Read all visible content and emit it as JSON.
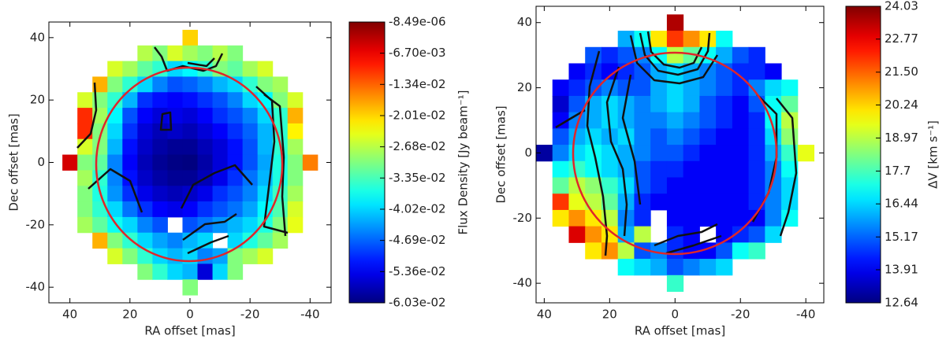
{
  "chart_data": [
    {
      "type": "heatmap",
      "colormap": "jet",
      "x_label": "RA offset [mas]",
      "y_label": "Dec offset [mas]",
      "xlim": [
        47,
        -47
      ],
      "ylim": [
        -45,
        45
      ],
      "xticks": [
        40,
        20,
        0,
        -20,
        -40
      ],
      "yticks": [
        40,
        20,
        0,
        -20,
        -40
      ],
      "x": [
        40,
        35,
        30,
        25,
        20,
        15,
        10,
        5,
        0,
        -5,
        -10,
        -15,
        -20,
        -25,
        -30,
        -35,
        -40
      ],
      "y": [
        40,
        35,
        30,
        25,
        20,
        15,
        10,
        5,
        0,
        -5,
        -10,
        -15,
        -20,
        -25,
        -30,
        -35,
        -40
      ],
      "z": [
        [
          null,
          null,
          null,
          null,
          null,
          null,
          null,
          null,
          -0.02,
          null,
          null,
          null,
          null,
          null,
          null,
          null,
          null
        ],
        [
          null,
          null,
          null,
          null,
          null,
          -0.027,
          -0.03,
          -0.025,
          -0.028,
          -0.03,
          -0.027,
          -0.03,
          null,
          null,
          null,
          null,
          null
        ],
        [
          null,
          null,
          null,
          -0.025,
          -0.028,
          -0.032,
          -0.035,
          -0.04,
          -0.038,
          -0.035,
          -0.03,
          -0.032,
          -0.028,
          -0.025,
          null,
          null,
          null
        ],
        [
          null,
          null,
          -0.018,
          -0.03,
          -0.035,
          -0.04,
          -0.045,
          -0.048,
          -0.047,
          -0.045,
          -0.042,
          -0.04,
          -0.035,
          -0.03,
          -0.028,
          null,
          null
        ],
        [
          null,
          -0.025,
          -0.03,
          -0.035,
          -0.042,
          -0.05,
          -0.052,
          -0.053,
          -0.052,
          -0.05,
          -0.048,
          -0.045,
          -0.04,
          -0.038,
          -0.03,
          -0.025,
          null
        ],
        [
          null,
          -0.01,
          -0.028,
          -0.038,
          -0.048,
          -0.053,
          -0.055,
          -0.054,
          -0.055,
          -0.053,
          -0.05,
          -0.048,
          -0.045,
          -0.04,
          -0.035,
          -0.018,
          null
        ],
        [
          null,
          -0.01,
          -0.03,
          -0.04,
          -0.05,
          -0.055,
          -0.057,
          -0.056,
          -0.057,
          -0.055,
          -0.053,
          -0.05,
          -0.047,
          -0.042,
          -0.035,
          -0.022,
          null
        ],
        [
          null,
          -0.025,
          -0.03,
          -0.042,
          -0.052,
          -0.056,
          -0.058,
          -0.059,
          -0.059,
          -0.057,
          -0.055,
          -0.052,
          -0.048,
          -0.042,
          -0.035,
          -0.028,
          null
        ],
        [
          -0.005,
          -0.03,
          -0.032,
          -0.045,
          -0.053,
          -0.057,
          -0.059,
          -0.06,
          -0.0603,
          -0.058,
          -0.055,
          -0.052,
          -0.048,
          -0.043,
          -0.036,
          -0.03,
          -0.015
        ],
        [
          null,
          -0.028,
          -0.035,
          -0.045,
          -0.052,
          -0.056,
          -0.058,
          -0.059,
          -0.059,
          -0.057,
          -0.054,
          -0.05,
          -0.046,
          -0.042,
          -0.036,
          -0.03,
          null
        ],
        [
          null,
          -0.03,
          -0.036,
          -0.044,
          -0.05,
          -0.054,
          -0.056,
          -0.057,
          -0.056,
          -0.054,
          -0.05,
          -0.048,
          -0.045,
          -0.04,
          -0.034,
          -0.028,
          null
        ],
        [
          null,
          -0.03,
          -0.035,
          -0.04,
          -0.046,
          -0.05,
          -0.053,
          -0.054,
          -0.053,
          -0.05,
          -0.048,
          -0.046,
          -0.043,
          -0.038,
          -0.033,
          -0.025,
          null
        ],
        [
          null,
          -0.028,
          -0.032,
          -0.037,
          -0.04,
          -0.045,
          -0.048,
          null,
          -0.048,
          -0.046,
          -0.044,
          -0.042,
          -0.04,
          -0.036,
          -0.03,
          -0.024,
          null
        ],
        [
          null,
          null,
          -0.018,
          -0.03,
          -0.035,
          -0.04,
          -0.043,
          -0.045,
          -0.042,
          -0.04,
          null,
          -0.04,
          -0.036,
          -0.032,
          -0.028,
          null,
          null
        ],
        [
          null,
          null,
          null,
          -0.025,
          -0.03,
          -0.035,
          -0.04,
          -0.042,
          -0.04,
          -0.045,
          -0.043,
          -0.03,
          -0.028,
          -0.025,
          null,
          null,
          null
        ],
        [
          null,
          null,
          null,
          null,
          null,
          -0.03,
          -0.035,
          -0.04,
          -0.042,
          -0.055,
          -0.04,
          -0.03,
          null,
          null,
          null,
          null,
          null
        ],
        [
          null,
          null,
          null,
          null,
          null,
          null,
          null,
          null,
          -0.03,
          null,
          null,
          null,
          null,
          null,
          null,
          null,
          null
        ]
      ],
      "colorbar": {
        "label": "Flux Density [Jy beam⁻¹]",
        "lim": [
          -0.0603,
          -8.49e-06
        ],
        "ticks": [
          {
            "value": -8.49e-06,
            "label": "-8.49e-06"
          },
          {
            "value": -0.0067,
            "label": "-6.70e-03"
          },
          {
            "value": -0.0134,
            "label": "-1.34e-02"
          },
          {
            "value": -0.0201,
            "label": "-2.01e-02"
          },
          {
            "value": -0.0268,
            "label": "-2.68e-02"
          },
          {
            "value": -0.0335,
            "label": "-3.35e-02"
          },
          {
            "value": -0.0402,
            "label": "-4.02e-02"
          },
          {
            "value": -0.0469,
            "label": "-4.69e-02"
          },
          {
            "value": -0.0536,
            "label": "-5.36e-02"
          },
          {
            "value": -0.0603,
            "label": "-6.03e-02"
          }
        ]
      }
    },
    {
      "type": "heatmap",
      "colormap": "jet",
      "x_label": "RA offset [mas]",
      "y_label": "Dec offset [mas]",
      "xlim": [
        42.5,
        -45.5
      ],
      "ylim": [
        -46,
        45
      ],
      "xticks": [
        40,
        20,
        0,
        -20,
        -40
      ],
      "yticks": [
        40,
        20,
        0,
        -20,
        -40
      ],
      "x": [
        40,
        35,
        30,
        25,
        20,
        15,
        10,
        5,
        0,
        -5,
        -10,
        -15,
        -20,
        -25,
        -30,
        -35,
        -40
      ],
      "y": [
        40,
        35,
        30,
        25,
        20,
        15,
        10,
        5,
        0,
        -5,
        -10,
        -15,
        -20,
        -25,
        -30,
        -35,
        -40
      ],
      "z": [
        [
          null,
          null,
          null,
          null,
          null,
          null,
          null,
          null,
          23.5,
          null,
          null,
          null,
          null,
          null,
          null,
          null,
          null
        ],
        [
          null,
          null,
          null,
          null,
          null,
          16,
          17,
          20,
          22,
          21,
          20,
          17,
          null,
          null,
          null,
          null,
          null
        ],
        [
          null,
          null,
          null,
          15,
          14.5,
          15,
          15.5,
          17,
          19,
          18,
          17,
          16,
          15,
          14.5,
          null,
          null,
          null
        ],
        [
          null,
          null,
          14,
          14.5,
          14,
          14.5,
          15,
          16,
          16.5,
          16,
          15.5,
          15,
          14.5,
          14.5,
          14,
          null,
          null
        ],
        [
          null,
          14,
          14.5,
          15,
          15.5,
          15,
          15,
          16,
          16.5,
          16,
          15.5,
          15,
          14.5,
          15.5,
          16.5,
          17,
          null
        ],
        [
          null,
          13.5,
          15,
          16,
          16.5,
          16,
          15.5,
          16,
          16.5,
          16,
          15,
          14.5,
          14,
          15,
          17,
          18,
          null
        ],
        [
          null,
          14,
          15.5,
          16,
          16.5,
          16,
          15.5,
          15.5,
          16,
          15.5,
          15,
          14.5,
          14,
          14.5,
          17,
          19,
          null
        ],
        [
          null,
          15,
          16,
          16.5,
          16,
          16.5,
          15.5,
          15,
          15.5,
          15,
          14.5,
          14,
          14,
          14.5,
          16.5,
          18.5,
          null
        ],
        [
          13,
          15.5,
          16.5,
          17,
          16.5,
          16,
          15.5,
          15,
          15,
          14.5,
          14,
          14,
          14,
          14.5,
          16,
          17.5,
          19.5
        ],
        [
          null,
          17,
          17.5,
          17,
          16.5,
          16,
          15,
          14.5,
          14.5,
          14,
          14,
          14,
          14,
          14.5,
          15.5,
          17,
          null
        ],
        [
          null,
          18,
          19,
          18.5,
          17.5,
          16.5,
          15,
          14.5,
          14,
          14,
          14,
          14,
          14,
          14.5,
          15.5,
          16.5,
          null
        ],
        [
          null,
          22,
          19.5,
          19,
          18,
          16,
          14.5,
          14,
          14,
          14,
          14,
          14,
          14,
          14.5,
          15.5,
          16.5,
          null
        ],
        [
          null,
          20,
          21,
          20,
          19,
          15.5,
          14.5,
          null,
          14,
          14,
          14,
          14,
          14,
          14,
          15.5,
          17,
          null
        ],
        [
          null,
          null,
          23,
          21,
          20,
          16,
          19,
          null,
          14.5,
          14,
          null,
          14,
          14.5,
          15,
          16.5,
          null,
          null
        ],
        [
          null,
          null,
          null,
          20,
          21,
          19,
          15,
          15.5,
          14.5,
          14,
          14,
          15,
          17,
          17.5,
          null,
          null,
          null
        ],
        [
          null,
          null,
          null,
          null,
          null,
          17,
          16.5,
          16,
          15,
          15.5,
          16,
          16.5,
          null,
          null,
          null,
          null,
          null
        ],
        [
          null,
          null,
          null,
          null,
          null,
          null,
          null,
          null,
          17.5,
          null,
          null,
          null,
          null,
          null,
          null,
          null,
          null
        ]
      ],
      "colorbar": {
        "label": "ΔV [km s⁻¹]",
        "lim": [
          12.64,
          24.03
        ],
        "ticks": [
          24.03,
          22.77,
          {
            "value": 21.5,
            "label": "21.50"
          },
          20.24,
          18.97,
          17.7,
          16.44,
          15.17,
          13.91,
          12.64
        ]
      }
    }
  ]
}
